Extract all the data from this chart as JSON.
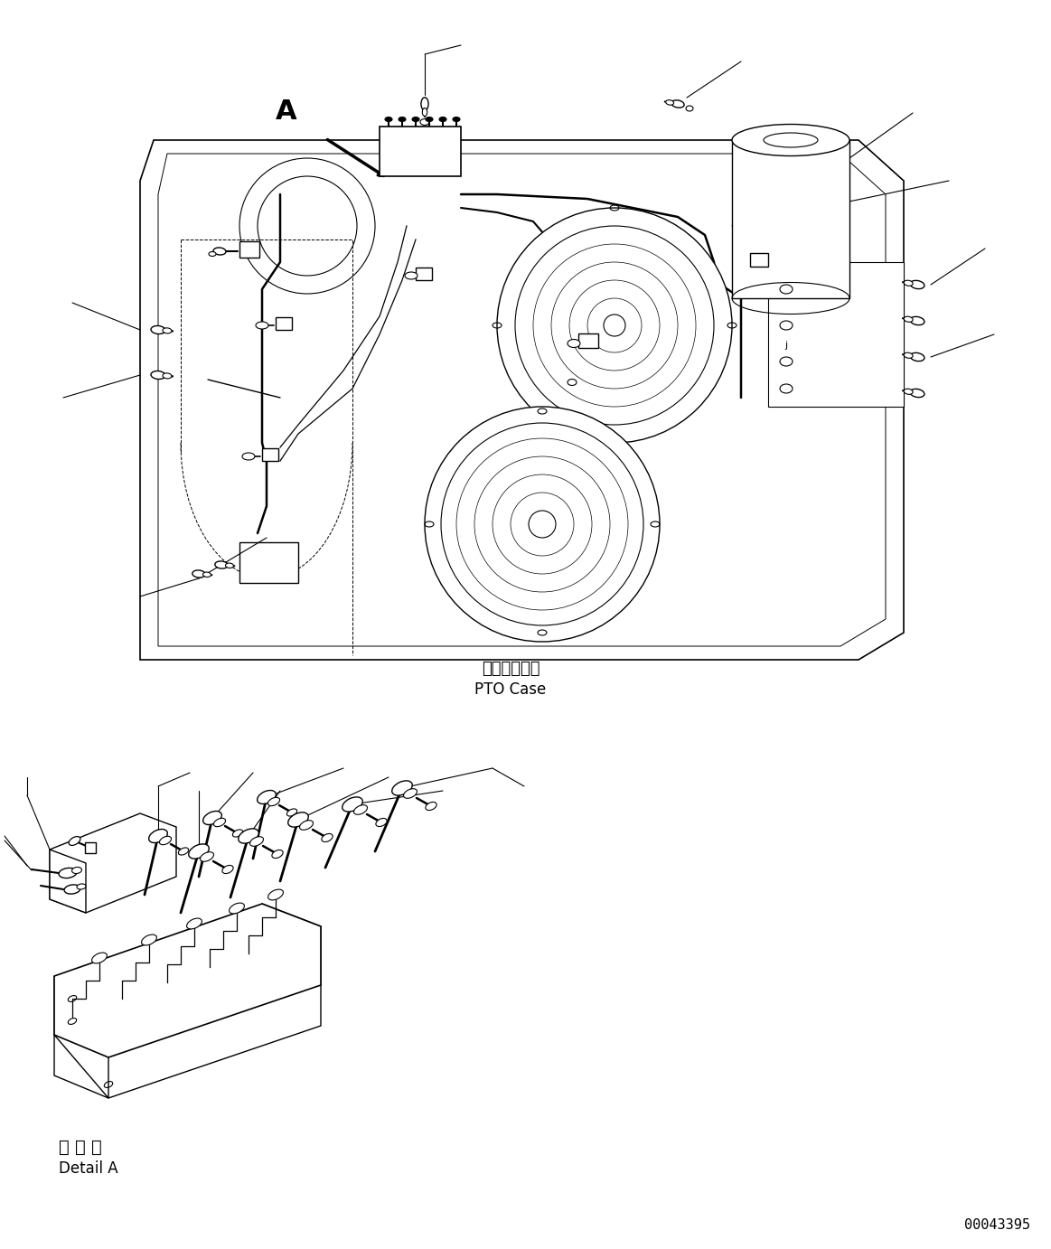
{
  "background_color": "#ffffff",
  "line_color": "#000000",
  "label_pto_case_jp": "ＰＴＯケース",
  "label_pto_case_en": "PTO Case",
  "label_detail_a_jp": "Ａ 詳 細",
  "label_detail_a_en": "Detail A",
  "label_a": "A",
  "part_number": "00043395",
  "figsize": [
    11.63,
    13.82
  ],
  "dpi": 100
}
